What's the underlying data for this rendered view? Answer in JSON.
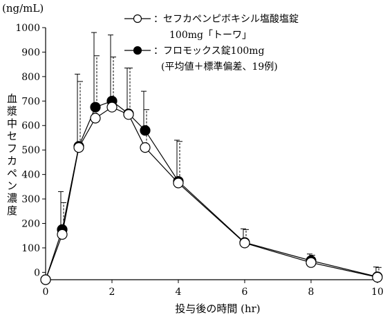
{
  "chart_data": {
    "type": "line",
    "y_unit": "(ng/mL)",
    "xlabel": "投与後の時間 (hr)",
    "ylabel": "血漿中セフカペン濃度",
    "xlim": [
      0,
      10
    ],
    "ylim": [
      -30,
      1000
    ],
    "x_ticks": [
      0,
      2,
      4,
      6,
      8,
      10
    ],
    "y_ticks": [
      0,
      100,
      200,
      300,
      400,
      500,
      600,
      700,
      800,
      900,
      1000
    ],
    "grid": false,
    "legend_position": "top-right",
    "x": [
      0,
      0.5,
      1,
      1.5,
      2,
      2.5,
      3,
      4,
      6,
      8,
      10
    ],
    "series": [
      {
        "name_lines": [
          "：セフカペンピボキシル塩酸塩錠",
          "100mg「トーワ」"
        ],
        "marker": "open-circle",
        "color": "#000000",
        "values": [
          -30,
          155,
          510,
          630,
          675,
          645,
          510,
          365,
          120,
          40,
          -20
        ],
        "error_upper": [
          null,
          285,
          780,
          885,
          880,
          835,
          665,
          535,
          175,
          70,
          20
        ]
      },
      {
        "name_lines": [
          "：フロモックス錠100mg",
          "(平均値＋標準偏差、19例)"
        ],
        "marker": "filled-circle",
        "color": "#000000",
        "values": [
          -30,
          175,
          515,
          675,
          700,
          648,
          580,
          372,
          122,
          48,
          -18
        ],
        "error_upper": [
          null,
          330,
          810,
          980,
          970,
          835,
          740,
          540,
          178,
          75,
          22
        ]
      }
    ]
  }
}
